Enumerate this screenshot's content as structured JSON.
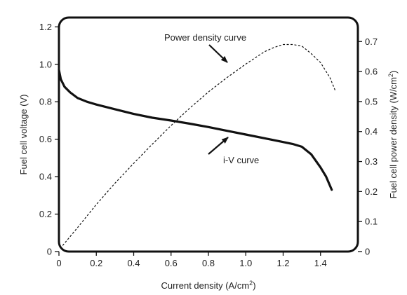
{
  "chart_data": {
    "type": "line",
    "xlabel_main": "Current density (A/cm",
    "xlabel_sup": "2",
    "xlabel_tail": ")",
    "ylabel_left": "Fuel cell voltage (V)",
    "ylabel_right_main": "Fuel cell power density (W/cm",
    "ylabel_right_sup": "2",
    "ylabel_right_tail": ")",
    "xlim": [
      0,
      1.6
    ],
    "ylim_left": [
      0,
      1.25
    ],
    "ylim_right": [
      0,
      0.78
    ],
    "x_ticks": [
      "0",
      "0.2",
      "0.4",
      "0.6",
      "0.8",
      "1.0",
      "1.2",
      "1.4"
    ],
    "y_left_ticks": [
      "0",
      "0.2",
      "0.4",
      "0.6",
      "0.8",
      "1.0",
      "1.2"
    ],
    "y_right_ticks": [
      "0",
      "0.1",
      "0.2",
      "0.3",
      "0.4",
      "0.5",
      "0.6",
      "0.7"
    ],
    "grid": false,
    "series": [
      {
        "label": "i-V curve",
        "axis": "left",
        "style": "solid",
        "x": [
          0,
          0.01,
          0.03,
          0.06,
          0.1,
          0.15,
          0.2,
          0.3,
          0.4,
          0.5,
          0.6,
          0.7,
          0.8,
          0.9,
          1.0,
          1.1,
          1.2,
          1.25,
          1.3,
          1.35,
          1.4,
          1.43,
          1.46
        ],
        "y": [
          0.97,
          0.92,
          0.88,
          0.85,
          0.82,
          0.8,
          0.785,
          0.76,
          0.735,
          0.715,
          0.7,
          0.683,
          0.665,
          0.645,
          0.625,
          0.605,
          0.585,
          0.575,
          0.56,
          0.52,
          0.45,
          0.4,
          0.33
        ]
      },
      {
        "label": "Power density curve",
        "axis": "right",
        "style": "dashed",
        "x": [
          0.02,
          0.1,
          0.2,
          0.3,
          0.4,
          0.5,
          0.6,
          0.7,
          0.8,
          0.9,
          1.0,
          1.1,
          1.15,
          1.2,
          1.25,
          1.3,
          1.35,
          1.4,
          1.45,
          1.48
        ],
        "y": [
          0.02,
          0.08,
          0.157,
          0.228,
          0.294,
          0.358,
          0.42,
          0.478,
          0.532,
          0.58,
          0.625,
          0.666,
          0.68,
          0.69,
          0.69,
          0.685,
          0.66,
          0.63,
          0.58,
          0.535
        ]
      }
    ],
    "annotations": [
      {
        "text": "Power density curve",
        "arrow_to_series": "Power density curve"
      },
      {
        "text": "i-V curve",
        "arrow_to_series": "i-V curve"
      }
    ]
  }
}
